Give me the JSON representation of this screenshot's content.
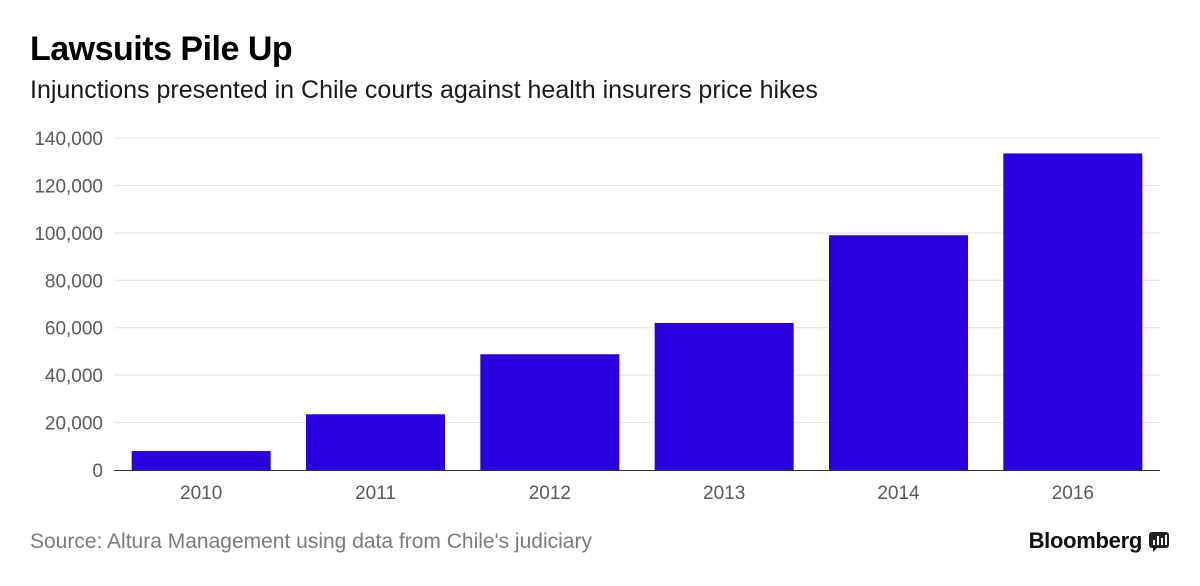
{
  "header": {
    "title": "Lawsuits Pile Up",
    "subtitle": "Injunctions presented in Chile courts against health insurers price hikes"
  },
  "footer": {
    "source": "Source: Altura Management using data from Chile's judiciary",
    "brand": "Bloomberg",
    "brand_icon": "bloomberg-terminal-icon"
  },
  "colors": {
    "bar": "#2a00e0",
    "grid": "#e3e3e3",
    "axis": "#333333"
  },
  "chart_data": {
    "type": "bar",
    "title": "Lawsuits Pile Up",
    "subtitle": "Injunctions presented in Chile courts against health insurers price hikes",
    "categories": [
      "2010",
      "2011",
      "2012",
      "2013",
      "2014",
      "2016"
    ],
    "values": [
      8000,
      23500,
      48800,
      62000,
      99000,
      133500
    ],
    "ylim": [
      0,
      140000
    ],
    "yticks": [
      0,
      20000,
      40000,
      60000,
      80000,
      100000,
      120000,
      140000
    ],
    "ytick_labels": [
      "0",
      "20,000",
      "40,000",
      "60,000",
      "80,000",
      "100,000",
      "120,000",
      "140,000"
    ],
    "xlabel": "",
    "ylabel": "",
    "grid": true,
    "legend": "none"
  }
}
